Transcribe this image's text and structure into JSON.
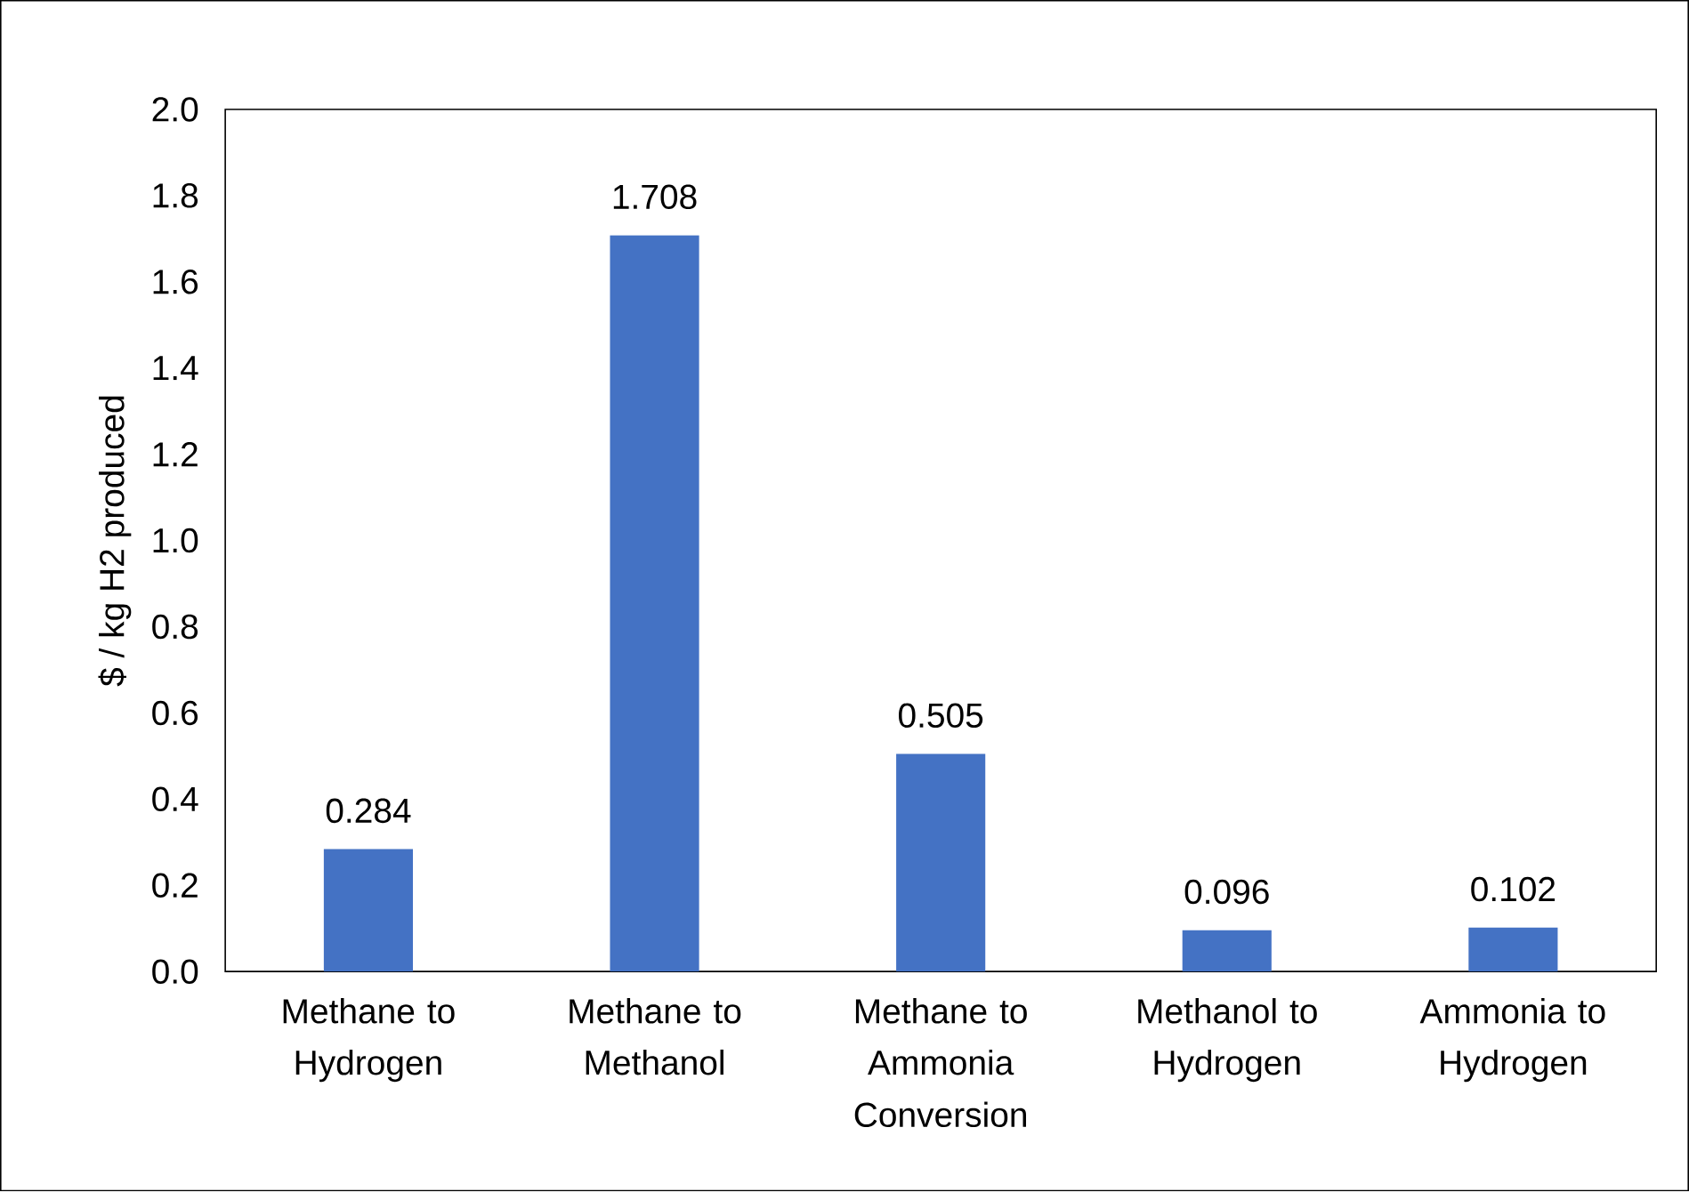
{
  "chart_data": {
    "type": "bar",
    "xlabel": "Conversion",
    "ylabel": "$ / kg H2 produced",
    "categories": [
      "Methane to Hydrogen",
      "Methane to Methanol",
      "Methane to Ammonia",
      "Methanol to Hydrogen",
      "Ammonia to Hydrogen"
    ],
    "values": [
      0.284,
      1.708,
      0.505,
      0.096,
      0.102
    ],
    "color": "#4472c4",
    "ylim": [
      0,
      2
    ],
    "yticks": [
      {
        "value": 0,
        "label": "0.0"
      },
      {
        "value": 0.2,
        "label": "0.2"
      },
      {
        "value": 0.4,
        "label": "0.4"
      },
      {
        "value": 0.6,
        "label": "0.6"
      },
      {
        "value": 0.8,
        "label": "0.8"
      },
      {
        "value": 1.0,
        "label": "1.0"
      },
      {
        "value": 1.2,
        "label": "1.2"
      },
      {
        "value": 1.4,
        "label": "1.4"
      },
      {
        "value": 1.6,
        "label": "1.6"
      },
      {
        "value": 1.8,
        "label": "1.8"
      },
      {
        "value": 2.0,
        "label": "2.0"
      }
    ],
    "data_labels": true
  }
}
